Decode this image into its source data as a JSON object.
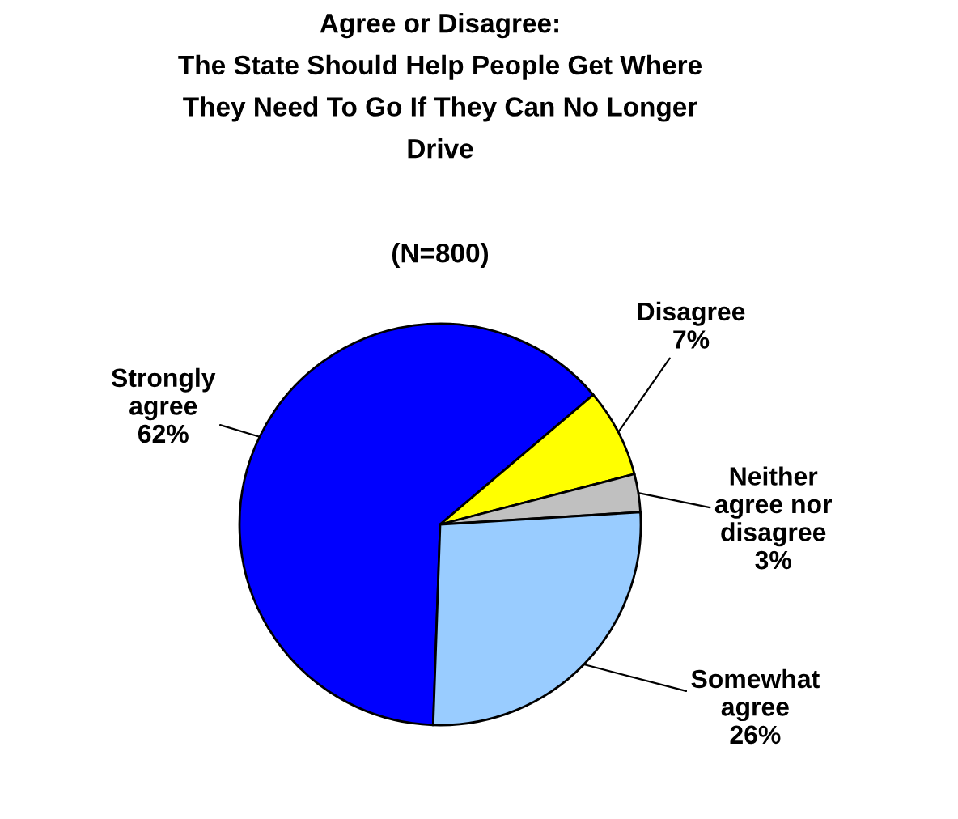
{
  "chart_data": {
    "type": "pie",
    "title": "Agree or Disagree:\nThe State Should Help People Get Where\nThey Need To Go If They Can No Longer\nDrive",
    "subtitle": "(N=800)",
    "categories": [
      "Strongly agree",
      "Disagree",
      "Neither agree nor disagree",
      "Somewhat agree"
    ],
    "values": [
      62,
      7,
      3,
      26
    ],
    "value_labels": [
      "62%",
      "7%",
      "3%",
      "26%"
    ],
    "colors": [
      "#0000ff",
      "#ffff00",
      "#c0c0c0",
      "#99ccff"
    ],
    "legend": false
  }
}
